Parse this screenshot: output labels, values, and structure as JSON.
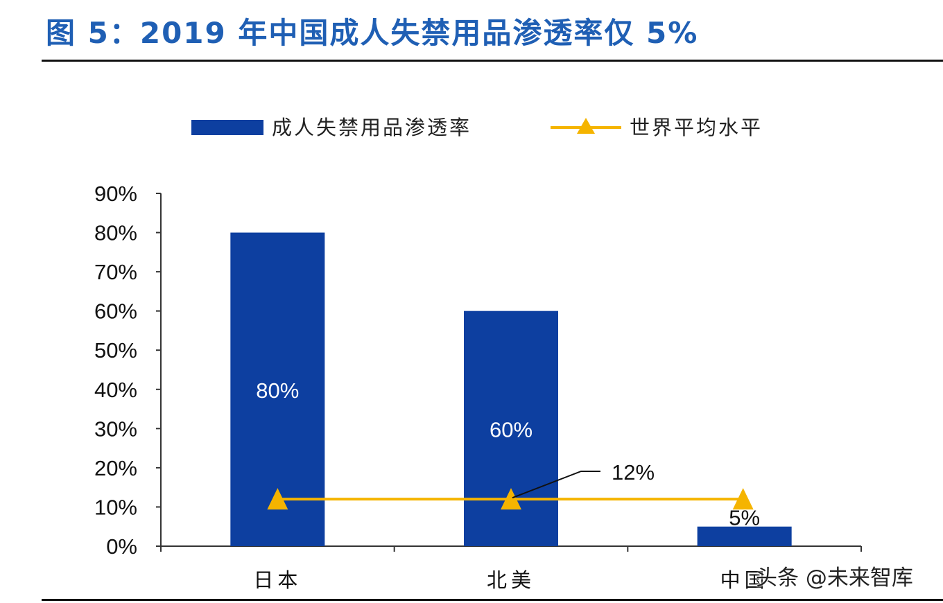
{
  "title": "图 5：2019 年中国成人失禁用品渗透率仅 5%",
  "watermark": "头条 @未来智库",
  "colors": {
    "bar": "#0d3fa0",
    "line": "#f5b400",
    "title": "#1f5fb4",
    "axis": "#333333"
  },
  "chart_data": {
    "type": "bar",
    "categories": [
      "日本",
      "北美",
      "中国"
    ],
    "series": [
      {
        "name": "成人失禁用品渗透率",
        "type": "bar",
        "values": [
          80,
          60,
          5
        ],
        "data_labels": [
          "80%",
          "60%",
          "5%"
        ]
      },
      {
        "name": "世界平均水平",
        "type": "line",
        "values": [
          12,
          12,
          12
        ],
        "annotation": "12%"
      }
    ],
    "ylim": [
      0,
      90
    ],
    "yticks": [
      "0%",
      "10%",
      "20%",
      "30%",
      "40%",
      "50%",
      "60%",
      "70%",
      "80%",
      "90%"
    ],
    "legend_position": "top",
    "grid": false
  }
}
